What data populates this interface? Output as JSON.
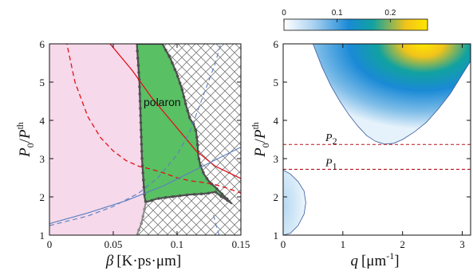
{
  "chart_data": [
    {
      "type": "phase-diagram",
      "xlabel": {
        "symbol": "β",
        "unit": "[K·ps·μm]"
      },
      "ylabel": {
        "num": "P",
        "num_sub": "0",
        "den": "P",
        "den_sup": "th"
      },
      "xlim": [
        0,
        0.15
      ],
      "ylim": [
        1,
        6
      ],
      "xticks": [
        "0",
        "0.05",
        "0.1",
        "0.15"
      ],
      "yticks": [
        "1",
        "2",
        "3",
        "4",
        "5",
        "6"
      ],
      "region_label": "polaron",
      "colors": {
        "left_region": "#f6d9ea",
        "polaron_region": "#59c064",
        "boundary": "#4f4f4f",
        "red_curve": "#e0121b",
        "blue_curve": "#5b7fc0",
        "hatch": "#777777"
      },
      "polaron_left_boundary": [
        [
          0.0685,
          6.0
        ],
        [
          0.0705,
          5.0
        ],
        [
          0.0715,
          4.0
        ],
        [
          0.0725,
          3.0
        ],
        [
          0.0735,
          2.5
        ],
        [
          0.0745,
          2.0
        ]
      ],
      "polaron_right_boundary": [
        [
          0.0885,
          6.0
        ],
        [
          0.095,
          5.6
        ],
        [
          0.1,
          5.2
        ],
        [
          0.104,
          4.8
        ],
        [
          0.107,
          4.4
        ],
        [
          0.11,
          4.05
        ],
        [
          0.113,
          3.9
        ],
        [
          0.115,
          3.7
        ],
        [
          0.116,
          3.4
        ],
        [
          0.1165,
          3.1
        ],
        [
          0.118,
          2.85
        ],
        [
          0.121,
          2.6
        ],
        [
          0.125,
          2.4
        ],
        [
          0.13,
          2.25
        ],
        [
          0.136,
          2.05
        ],
        [
          0.143,
          1.82
        ]
      ],
      "polaron_bottom_boundary": [
        [
          0.0745,
          2.0
        ],
        [
          0.0755,
          1.86
        ],
        [
          0.084,
          1.95
        ],
        [
          0.09,
          1.98
        ],
        [
          0.1,
          2.02
        ],
        [
          0.11,
          2.06
        ],
        [
          0.12,
          2.08
        ],
        [
          0.125,
          2.1
        ],
        [
          0.13,
          2.13
        ],
        [
          0.135,
          2.0
        ],
        [
          0.14,
          1.9
        ],
        [
          0.143,
          1.82
        ]
      ],
      "lower_left_boundary": [
        [
          0.0755,
          1.86
        ],
        [
          0.074,
          1.6
        ],
        [
          0.072,
          1.3
        ],
        [
          0.0685,
          1.0
        ]
      ],
      "red_solid": [
        [
          0.045,
          6.1
        ],
        [
          0.065,
          5.3
        ],
        [
          0.08,
          4.6
        ],
        [
          0.095,
          4.0
        ],
        [
          0.105,
          3.6
        ],
        [
          0.115,
          3.2
        ],
        [
          0.13,
          2.8
        ],
        [
          0.15,
          2.48
        ]
      ],
      "red_dashed": [
        [
          0.013,
          6.1
        ],
        [
          0.02,
          5.0
        ],
        [
          0.03,
          4.1
        ],
        [
          0.04,
          3.55
        ],
        [
          0.05,
          3.2
        ],
        [
          0.06,
          2.95
        ],
        [
          0.07,
          2.8
        ],
        [
          0.08,
          2.72
        ],
        [
          0.09,
          2.62
        ],
        [
          0.1,
          2.5
        ],
        [
          0.11,
          2.42
        ],
        [
          0.12,
          2.38
        ],
        [
          0.13,
          2.32
        ],
        [
          0.14,
          2.22
        ],
        [
          0.15,
          2.1
        ]
      ],
      "blue_solid": [
        [
          0,
          1.3
        ],
        [
          0.03,
          1.58
        ],
        [
          0.06,
          1.9
        ],
        [
          0.09,
          2.3
        ],
        [
          0.12,
          2.8
        ],
        [
          0.15,
          3.3
        ]
      ],
      "blue_dashed_lower": [
        [
          0,
          1.25
        ],
        [
          0.03,
          1.5
        ],
        [
          0.05,
          1.75
        ],
        [
          0.07,
          2.1
        ],
        [
          0.085,
          2.5
        ],
        [
          0.1,
          3.1
        ],
        [
          0.11,
          3.7
        ],
        [
          0.12,
          4.6
        ],
        [
          0.13,
          5.5
        ],
        [
          0.135,
          6.1
        ]
      ],
      "blue_dashed_upper": [
        [
          0.133,
          1.0
        ],
        [
          0.131,
          1.2
        ],
        [
          0.128,
          1.6
        ]
      ]
    },
    {
      "type": "heatmap",
      "xlabel": {
        "symbol": "q",
        "unit": "[μm",
        "unit_sup": "-1",
        "unit_close": "]"
      },
      "ylabel": {
        "num": "P",
        "num_sub": "0",
        "den": "P",
        "den_sup": "th"
      },
      "xlim": [
        0,
        3.14
      ],
      "ylim": [
        1,
        6
      ],
      "xticks": [
        "0",
        "1",
        "2",
        "3"
      ],
      "yticks": [
        "1",
        "2",
        "3",
        "4",
        "5",
        "6"
      ],
      "colorbar": {
        "ticks": [
          "0",
          "0.1",
          "0.2"
        ],
        "range": [
          0,
          0.27
        ],
        "colors": [
          "#ffffff",
          "#aed3f0",
          "#1a8ad6",
          "#11a2a0",
          "#f2c419",
          "#ffe600"
        ]
      },
      "lines": [
        {
          "label": "P",
          "sub": "2",
          "y": 3.37,
          "color": "#b5121b"
        },
        {
          "label": "P",
          "sub": "1",
          "y": 2.72,
          "color": "#b5121b"
        }
      ],
      "upper_lobe_boundary": [
        [
          0.5,
          6.0
        ],
        [
          0.65,
          5.4
        ],
        [
          0.8,
          4.9
        ],
        [
          0.95,
          4.5
        ],
        [
          1.1,
          4.15
        ],
        [
          1.25,
          3.85
        ],
        [
          1.4,
          3.6
        ],
        [
          1.55,
          3.45
        ],
        [
          1.7,
          3.38
        ],
        [
          1.85,
          3.4
        ],
        [
          2.0,
          3.5
        ],
        [
          2.2,
          3.7
        ],
        [
          2.4,
          3.95
        ],
        [
          2.6,
          4.3
        ],
        [
          2.8,
          4.7
        ],
        [
          3.0,
          5.2
        ],
        [
          3.14,
          5.55
        ]
      ],
      "lower_lobe_boundary": [
        [
          0,
          2.7
        ],
        [
          0.12,
          2.6
        ],
        [
          0.25,
          2.4
        ],
        [
          0.35,
          2.15
        ],
        [
          0.38,
          1.85
        ],
        [
          0.35,
          1.55
        ],
        [
          0.25,
          1.25
        ],
        [
          0.12,
          1.05
        ],
        [
          0,
          1.0
        ]
      ]
    }
  ]
}
